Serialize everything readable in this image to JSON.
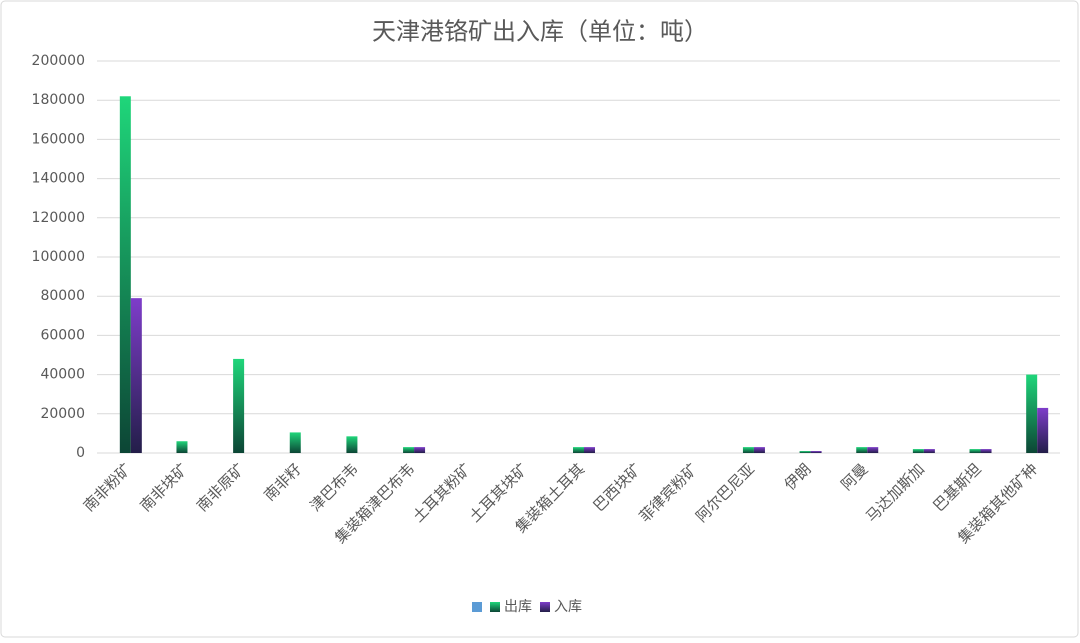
{
  "chart_data": {
    "type": "bar",
    "title": "天津港铬矿出入库（单位：吨）",
    "categories": [
      "南非粉矿",
      "南非块矿",
      "南非原矿",
      "南非籽",
      "津巴布韦",
      "集装箱津巴布韦",
      "土耳其粉矿",
      "土耳其块矿",
      "集装箱土耳其",
      "巴西块矿",
      "菲律宾粉矿",
      "阿尔巴尼亚",
      "伊朗",
      "阿曼",
      "马达加斯加",
      "巴基斯坦",
      "集装箱其他矿种"
    ],
    "series": [
      {
        "color": "#5b9bd5",
        "values": [
          null,
          null,
          null,
          null,
          null,
          null,
          null,
          null,
          null,
          null,
          null,
          null,
          null,
          null,
          null,
          null,
          null
        ]
      },
      {
        "name": "出库",
        "color": "#1fd67a",
        "values": [
          182000,
          6000,
          48000,
          10500,
          8500,
          3000,
          0,
          0,
          3000,
          0,
          0,
          3000,
          1000,
          3000,
          2000,
          2000,
          40000
        ]
      },
      {
        "name": "入库",
        "color": "#7e3dca",
        "values": [
          79000,
          0,
          0,
          0,
          0,
          3000,
          0,
          0,
          3000,
          0,
          0,
          3000,
          1000,
          3000,
          2000,
          2000,
          23000
        ]
      }
    ],
    "ylim": [
      0,
      200000
    ],
    "yticks": [
      0,
      20000,
      40000,
      60000,
      80000,
      100000,
      120000,
      140000,
      160000,
      180000,
      200000
    ],
    "grid": true,
    "legend": "bottom"
  }
}
